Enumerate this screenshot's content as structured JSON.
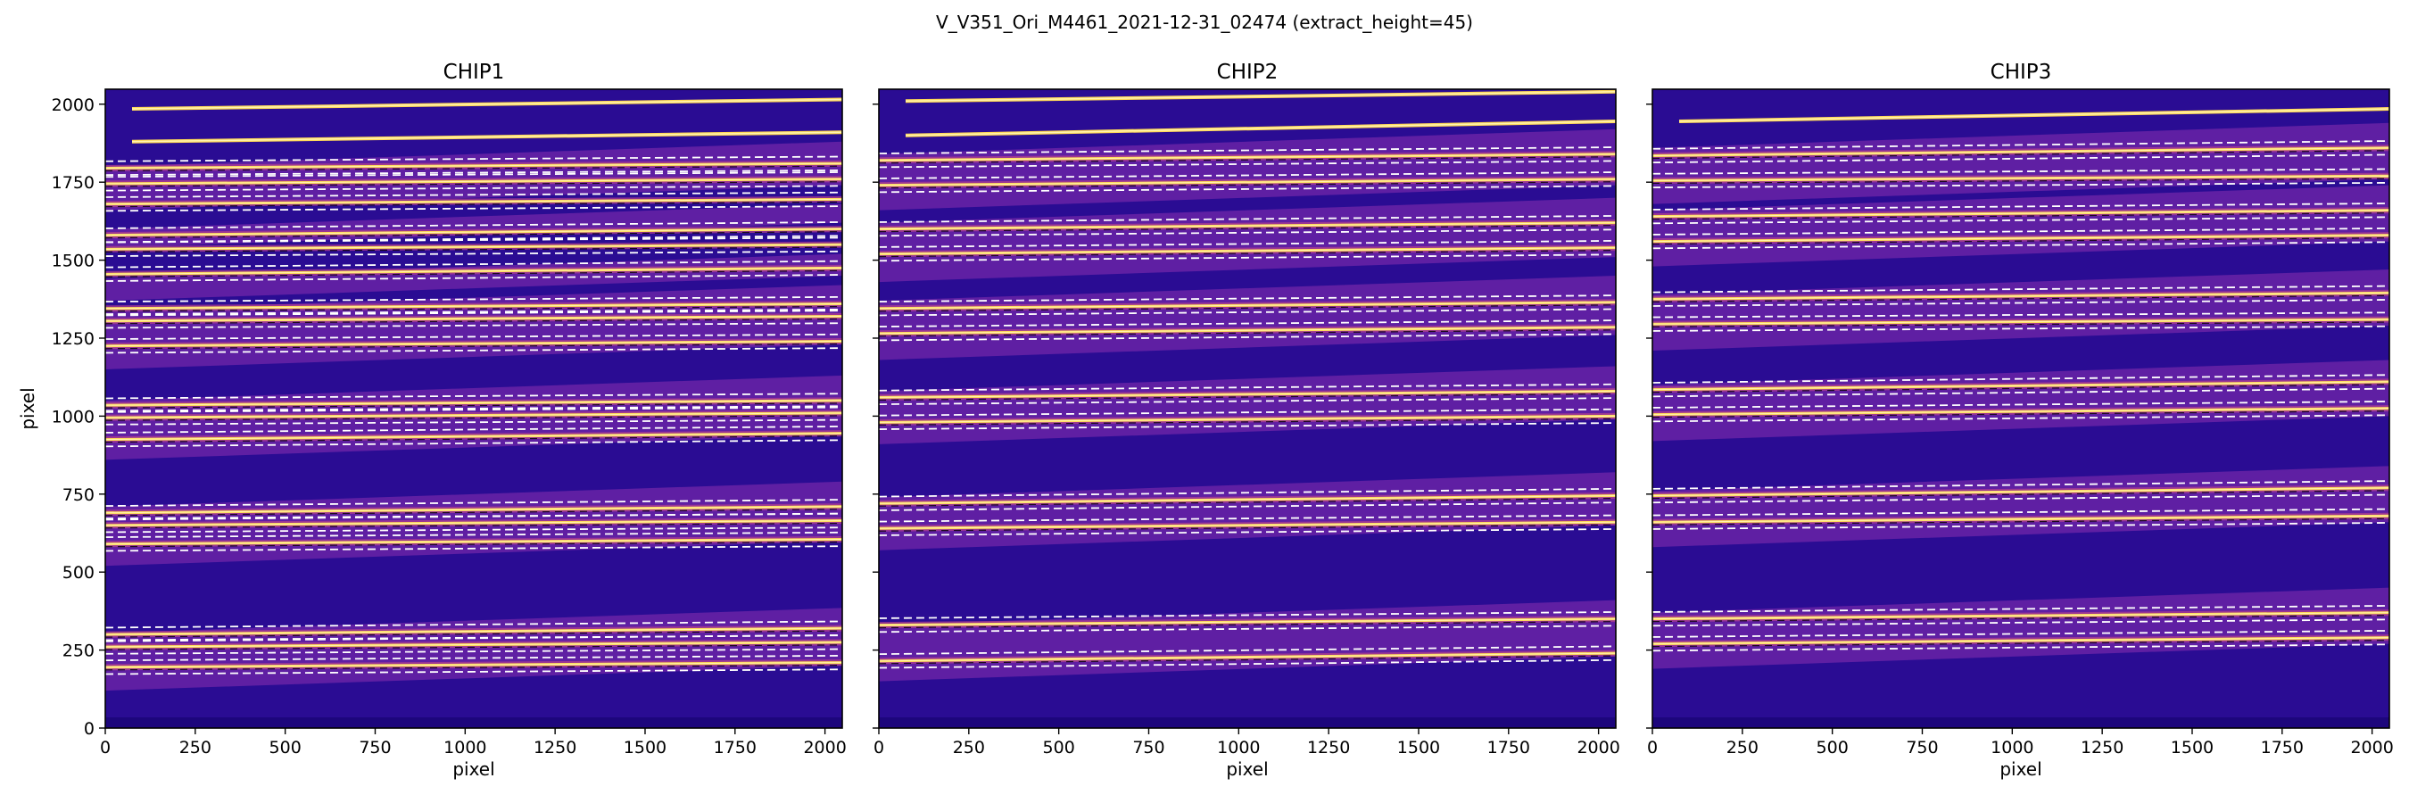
{
  "figure_title": "V_V351_Ori_M4461_2021-12-31_02474  (extract_height=45)",
  "colors": {
    "background": "#2a0c93",
    "background_dark": "#1a0577",
    "band": "#8a2fb0",
    "band_glow": "#b4408f",
    "trace": "#ffd95a",
    "trace_core": "#fff3b0",
    "dashed_line": "#ffffff",
    "center_line": "#000000",
    "axes": "#000000"
  },
  "chart_data": [
    {
      "type": "heatmap",
      "title": "CHIP1",
      "xlabel": "pixel",
      "ylabel": "pixel",
      "xlim": [
        0,
        2048
      ],
      "ylim": [
        0,
        2048
      ],
      "xticks": [
        0,
        250,
        500,
        750,
        1000,
        1250,
        1500,
        1750,
        2000
      ],
      "yticks": [
        0,
        250,
        500,
        750,
        1000,
        1250,
        1500,
        1750,
        2000
      ],
      "colormap": "plasma",
      "bright_traces": [
        [
          1985,
          2015
        ],
        [
          1880,
          1910
        ]
      ],
      "orders": [
        {
          "y0": 1795,
          "y1": 1810,
          "halfwidth": 22
        },
        {
          "y0": 1745,
          "y1": 1760,
          "halfwidth": 22
        },
        {
          "y0": 1680,
          "y1": 1695,
          "halfwidth": 22
        },
        {
          "y0": 1580,
          "y1": 1600,
          "halfwidth": 22
        },
        {
          "y0": 1535,
          "y1": 1550,
          "halfwidth": 22
        },
        {
          "y0": 1455,
          "y1": 1475,
          "halfwidth": 22
        },
        {
          "y0": 1345,
          "y1": 1360,
          "halfwidth": 22
        },
        {
          "y0": 1305,
          "y1": 1320,
          "halfwidth": 22
        },
        {
          "y0": 1225,
          "y1": 1240,
          "halfwidth": 22
        },
        {
          "y0": 1035,
          "y1": 1050,
          "halfwidth": 22
        },
        {
          "y0": 995,
          "y1": 1010,
          "halfwidth": 22
        },
        {
          "y0": 925,
          "y1": 945,
          "halfwidth": 22
        },
        {
          "y0": 690,
          "y1": 710,
          "halfwidth": 22
        },
        {
          "y0": 650,
          "y1": 665,
          "halfwidth": 22
        },
        {
          "y0": 590,
          "y1": 605,
          "halfwidth": 22
        },
        {
          "y0": 300,
          "y1": 320,
          "halfwidth": 22
        },
        {
          "y0": 260,
          "y1": 275,
          "halfwidth": 22
        },
        {
          "y0": 195,
          "y1": 210,
          "halfwidth": 22
        }
      ],
      "bands": [
        [
          1700,
          1840
        ],
        [
          1580,
          1640
        ],
        [
          1410,
          1480
        ],
        [
          1190,
          1380
        ],
        [
          900,
          1090
        ],
        [
          560,
          750
        ],
        [
          160,
          345
        ]
      ]
    },
    {
      "type": "heatmap",
      "title": "CHIP2",
      "xlabel": "pixel",
      "ylabel": "",
      "xlim": [
        0,
        2048
      ],
      "ylim": [
        0,
        2048
      ],
      "xticks": [
        0,
        250,
        500,
        750,
        1000,
        1250,
        1500,
        1750,
        2000
      ],
      "yticks": [
        0,
        250,
        500,
        750,
        1000,
        1250,
        1500,
        1750,
        2000
      ],
      "colormap": "plasma",
      "bright_traces": [
        [
          2010,
          2040
        ],
        [
          1900,
          1945
        ]
      ],
      "orders": [
        {
          "y0": 1820,
          "y1": 1840,
          "halfwidth": 22
        },
        {
          "y0": 1740,
          "y1": 1760,
          "halfwidth": 22
        },
        {
          "y0": 1600,
          "y1": 1620,
          "halfwidth": 22
        },
        {
          "y0": 1520,
          "y1": 1540,
          "halfwidth": 22
        },
        {
          "y0": 1345,
          "y1": 1365,
          "halfwidth": 22
        },
        {
          "y0": 1265,
          "y1": 1285,
          "halfwidth": 22
        },
        {
          "y0": 1060,
          "y1": 1080,
          "halfwidth": 22
        },
        {
          "y0": 980,
          "y1": 1000,
          "halfwidth": 22
        },
        {
          "y0": 720,
          "y1": 745,
          "halfwidth": 22
        },
        {
          "y0": 640,
          "y1": 660,
          "halfwidth": 22
        },
        {
          "y0": 330,
          "y1": 350,
          "halfwidth": 22
        },
        {
          "y0": 215,
          "y1": 240,
          "halfwidth": 22
        }
      ],
      "bands": [
        [
          1700,
          1880
        ],
        [
          1470,
          1660
        ],
        [
          1220,
          1410
        ],
        [
          950,
          1120
        ],
        [
          610,
          780
        ],
        [
          190,
          370
        ]
      ]
    },
    {
      "type": "heatmap",
      "title": "CHIP3",
      "xlabel": "pixel",
      "ylabel": "",
      "xlim": [
        0,
        2048
      ],
      "ylim": [
        0,
        2048
      ],
      "xticks": [
        0,
        250,
        500,
        750,
        1000,
        1250,
        1500,
        1750,
        2000
      ],
      "yticks": [
        0,
        250,
        500,
        750,
        1000,
        1250,
        1500,
        1750,
        2000
      ],
      "colormap": "plasma",
      "bright_traces": [
        [
          1945,
          1985
        ]
      ],
      "orders": [
        {
          "y0": 1835,
          "y1": 1860,
          "halfwidth": 22
        },
        {
          "y0": 1755,
          "y1": 1770,
          "halfwidth": 22
        },
        {
          "y0": 1640,
          "y1": 1660,
          "halfwidth": 22
        },
        {
          "y0": 1560,
          "y1": 1580,
          "halfwidth": 22
        },
        {
          "y0": 1375,
          "y1": 1395,
          "halfwidth": 22
        },
        {
          "y0": 1295,
          "y1": 1310,
          "halfwidth": 22
        },
        {
          "y0": 1085,
          "y1": 1110,
          "halfwidth": 22
        },
        {
          "y0": 1005,
          "y1": 1025,
          "halfwidth": 22
        },
        {
          "y0": 745,
          "y1": 770,
          "halfwidth": 22
        },
        {
          "y0": 660,
          "y1": 680,
          "halfwidth": 22
        },
        {
          "y0": 350,
          "y1": 370,
          "halfwidth": 22
        },
        {
          "y0": 270,
          "y1": 290,
          "halfwidth": 22
        }
      ],
      "bands": [
        [
          1720,
          1900
        ],
        [
          1520,
          1700
        ],
        [
          1250,
          1430
        ],
        [
          960,
          1140
        ],
        [
          620,
          800
        ],
        [
          230,
          410
        ]
      ]
    }
  ]
}
